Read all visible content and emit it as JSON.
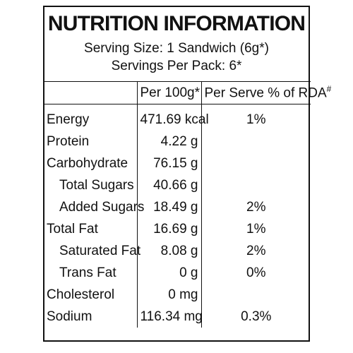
{
  "panel": {
    "title": "NUTRITION INFORMATION",
    "serving_size": "Serving Size: 1 Sandwich (6g*)",
    "servings_per_pack": "Servings Per Pack: 6*"
  },
  "table": {
    "headers": {
      "name": "",
      "per100g": "Per 100g*",
      "per_serve": "Per Serve % of RDA",
      "per_serve_mark": "#"
    },
    "rows": [
      {
        "name": "Energy",
        "per100g": "471.69 kcal",
        "rda": "1%",
        "indent": false
      },
      {
        "name": "Protein",
        "per100g": "4.22 g",
        "rda": "",
        "indent": false
      },
      {
        "name": "Carbohydrate",
        "per100g": "76.15 g",
        "rda": "",
        "indent": false
      },
      {
        "name": "Total Sugars",
        "per100g": "40.66 g",
        "rda": "",
        "indent": true
      },
      {
        "name": "Added Sugars",
        "per100g": "18.49 g",
        "rda": "2%",
        "indent": true
      },
      {
        "name": "Total Fat",
        "per100g": "16.69 g",
        "rda": "1%",
        "indent": false
      },
      {
        "name": "Saturated Fat",
        "per100g": "8.08 g",
        "rda": "2%",
        "indent": true
      },
      {
        "name": "Trans Fat",
        "per100g": "0 g",
        "rda": "0%",
        "indent": true
      },
      {
        "name": "Cholesterol",
        "per100g": "0 mg",
        "rda": "",
        "indent": false
      },
      {
        "name": "Sodium",
        "per100g": "116.34 mg",
        "rda": "0.3%",
        "indent": false
      }
    ]
  }
}
